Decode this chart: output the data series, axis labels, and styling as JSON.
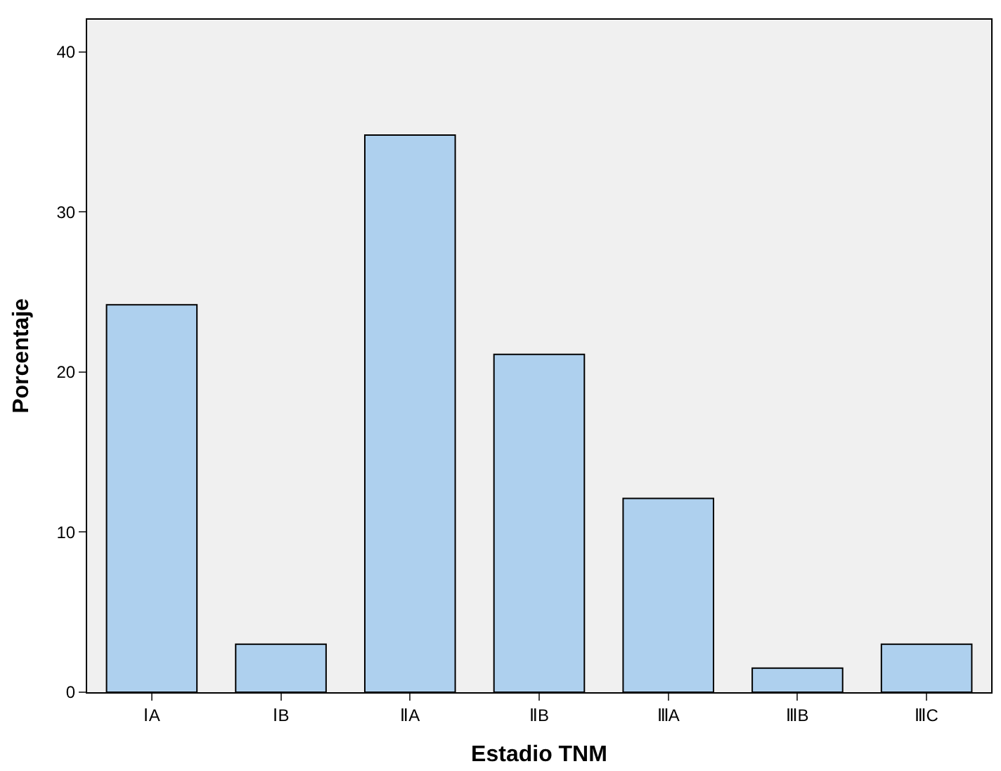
{
  "chart_data": {
    "type": "bar",
    "xlabel": "Estadio TNM",
    "ylabel": "Porcentaje",
    "categories": [
      "ⅠA",
      "ⅠB",
      "ⅡA",
      "ⅡB",
      "ⅢA",
      "ⅢB",
      "ⅢC"
    ],
    "values": [
      24.2,
      3.0,
      34.8,
      21.1,
      12.1,
      1.5,
      3.0
    ],
    "color": "#aed0ee",
    "ylim": [
      0,
      42
    ],
    "yticks": [
      0,
      10,
      20,
      30,
      40
    ],
    "grid": false
  }
}
